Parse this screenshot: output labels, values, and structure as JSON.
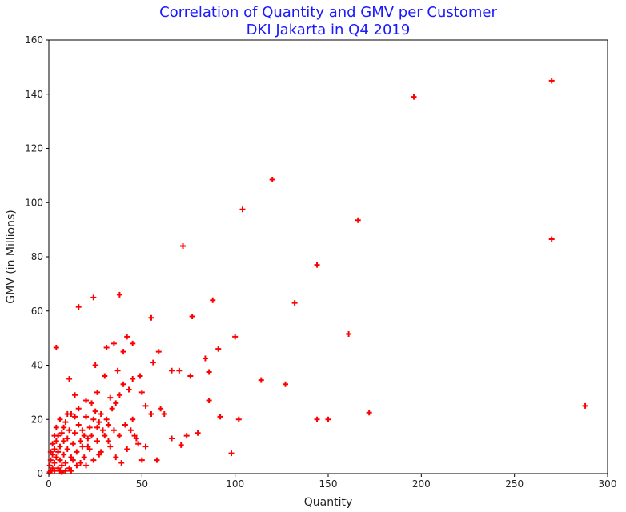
{
  "chart_data": {
    "type": "scatter",
    "title": "Correlation of Quantity and GMV per Customer",
    "subtitle": "DKI Jakarta in Q4 2019",
    "xlabel": "Quantity",
    "ylabel": "GMV (in Millions)",
    "xlim": [
      0,
      300
    ],
    "ylim": [
      0,
      160
    ],
    "xticks": [
      0,
      50,
      100,
      150,
      200,
      250,
      300
    ],
    "yticks": [
      0,
      20,
      40,
      60,
      80,
      100,
      120,
      140,
      160
    ],
    "grid": false,
    "legend": "none",
    "marker": "plus",
    "color": "#ff0000",
    "title_color": "#1a1aff",
    "points": [
      [
        270,
        145
      ],
      [
        196,
        139
      ],
      [
        120,
        108.5
      ],
      [
        104,
        97.5
      ],
      [
        166,
        93.5
      ],
      [
        270,
        86.5
      ],
      [
        72,
        84
      ],
      [
        144,
        77
      ],
      [
        132,
        63
      ],
      [
        88,
        64
      ],
      [
        77,
        58
      ],
      [
        55,
        57.5
      ],
      [
        24,
        65
      ],
      [
        38,
        66
      ],
      [
        16,
        61.5
      ],
      [
        161,
        51.5
      ],
      [
        100,
        50.5
      ],
      [
        91,
        46
      ],
      [
        4,
        46.5
      ],
      [
        114,
        34.5
      ],
      [
        127,
        33
      ],
      [
        86,
        37.5
      ],
      [
        84,
        42.5
      ],
      [
        98,
        7.5
      ],
      [
        102,
        20
      ],
      [
        92,
        21
      ],
      [
        144,
        20
      ],
      [
        150,
        20
      ],
      [
        172,
        22.5
      ],
      [
        288,
        25
      ],
      [
        42,
        50.5
      ],
      [
        45,
        48
      ],
      [
        35,
        48
      ],
      [
        31,
        46.5
      ],
      [
        40,
        45
      ],
      [
        56,
        41
      ],
      [
        59,
        45
      ],
      [
        66,
        38
      ],
      [
        70,
        38
      ],
      [
        76,
        36
      ],
      [
        86,
        27
      ],
      [
        80,
        15
      ],
      [
        74,
        14
      ],
      [
        71,
        10.5
      ],
      [
        66,
        13
      ],
      [
        58,
        5
      ],
      [
        62,
        22
      ],
      [
        60,
        24
      ],
      [
        55,
        22
      ],
      [
        52,
        25
      ],
      [
        50,
        30
      ],
      [
        49,
        36
      ],
      [
        45,
        35
      ],
      [
        43,
        31
      ],
      [
        40,
        33
      ],
      [
        38,
        29
      ],
      [
        36,
        26
      ],
      [
        34,
        24
      ],
      [
        33,
        28
      ],
      [
        31,
        20
      ],
      [
        28,
        22
      ],
      [
        27,
        19
      ],
      [
        25,
        23
      ],
      [
        24,
        20
      ],
      [
        23,
        26
      ],
      [
        22,
        17
      ],
      [
        21,
        13
      ],
      [
        20,
        21
      ],
      [
        19,
        14
      ],
      [
        18,
        10
      ],
      [
        17,
        12
      ],
      [
        16,
        18
      ],
      [
        15,
        8
      ],
      [
        14,
        15
      ],
      [
        13,
        11
      ],
      [
        12,
        22
      ],
      [
        12,
        6
      ],
      [
        11,
        16
      ],
      [
        10,
        9
      ],
      [
        10,
        13
      ],
      [
        9,
        19
      ],
      [
        9,
        4
      ],
      [
        8,
        7
      ],
      [
        8,
        12
      ],
      [
        7,
        15
      ],
      [
        7,
        3
      ],
      [
        6,
        10
      ],
      [
        6,
        5
      ],
      [
        5,
        8
      ],
      [
        5,
        2
      ],
      [
        4,
        12
      ],
      [
        4,
        6
      ],
      [
        3,
        4
      ],
      [
        3,
        9
      ],
      [
        2,
        2
      ],
      [
        2,
        7
      ],
      [
        1,
        1
      ],
      [
        1,
        5
      ],
      [
        0.5,
        3
      ],
      [
        0.5,
        0.5
      ],
      [
        26,
        30
      ],
      [
        30,
        36
      ],
      [
        14,
        29
      ],
      [
        11,
        35
      ],
      [
        20,
        27
      ],
      [
        25,
        40
      ],
      [
        37,
        38
      ],
      [
        45,
        20
      ],
      [
        47,
        13
      ],
      [
        52,
        10
      ],
      [
        48,
        11
      ],
      [
        50,
        5
      ],
      [
        42,
        9
      ],
      [
        39,
        4
      ],
      [
        36,
        6
      ],
      [
        33,
        10
      ],
      [
        30,
        14
      ],
      [
        28,
        8
      ],
      [
        26,
        12
      ],
      [
        24,
        5
      ],
      [
        22,
        9
      ],
      [
        19,
        6
      ],
      [
        17,
        4
      ],
      [
        15,
        3
      ],
      [
        13,
        5
      ],
      [
        14,
        21
      ],
      [
        16,
        24
      ],
      [
        18,
        16
      ],
      [
        21,
        10
      ],
      [
        23,
        14
      ],
      [
        26,
        17
      ],
      [
        29,
        16
      ],
      [
        32,
        18
      ],
      [
        35,
        16
      ],
      [
        38,
        14
      ],
      [
        41,
        18
      ],
      [
        44,
        16
      ],
      [
        46,
        14
      ],
      [
        32,
        12
      ],
      [
        27,
        7
      ],
      [
        11,
        2
      ],
      [
        9,
        1
      ],
      [
        7,
        0.5
      ],
      [
        12,
        1
      ],
      [
        20,
        3
      ],
      [
        3,
        14
      ],
      [
        2,
        11
      ],
      [
        1,
        8
      ],
      [
        4,
        17
      ],
      [
        6,
        20
      ],
      [
        8,
        17
      ],
      [
        10,
        22
      ],
      [
        5,
        14
      ],
      [
        3,
        1
      ],
      [
        6,
        1
      ]
    ]
  }
}
